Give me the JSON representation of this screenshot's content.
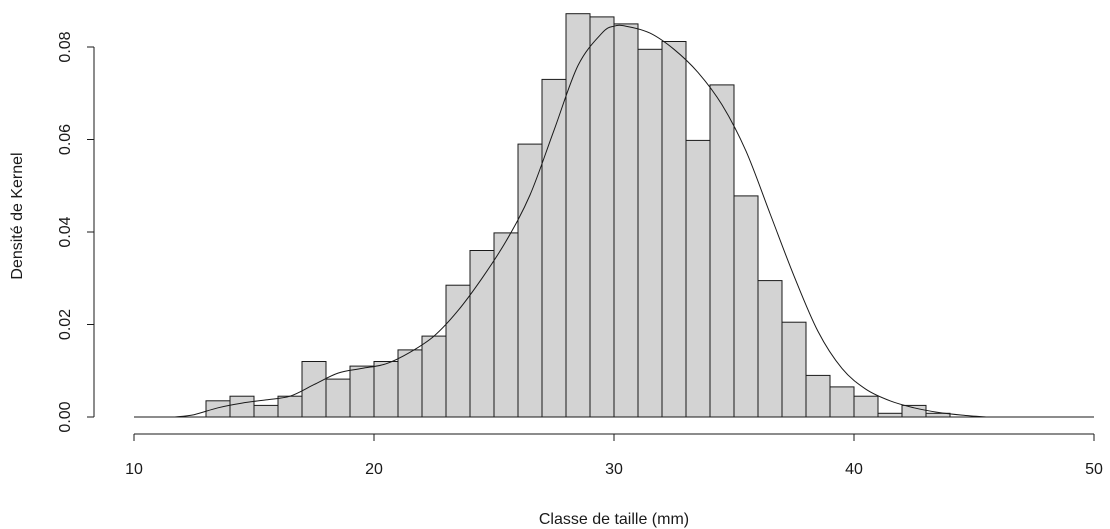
{
  "chart_data": {
    "type": "bar",
    "title": "",
    "xlabel": "Classe de taille (mm)",
    "ylabel": "Densité de Kernel",
    "xlim": [
      10,
      50
    ],
    "ylim": [
      0,
      0.085
    ],
    "x_ticks": [
      10,
      20,
      30,
      40,
      50
    ],
    "y_ticks": [
      0.0,
      0.02,
      0.04,
      0.06,
      0.08
    ],
    "y_tick_labels": [
      "0.00",
      "0.02",
      "0.04",
      "0.06",
      "0.08"
    ],
    "bar_color": "#d3d3d3",
    "outline_color": "#1a1a1a",
    "grid": false,
    "histogram": {
      "bin_width": 1,
      "bin_starts": [
        13,
        14,
        15,
        16,
        17,
        18,
        19,
        20,
        21,
        22,
        23,
        24,
        25,
        26,
        27,
        28,
        29,
        30,
        31,
        32,
        33,
        34,
        35,
        36,
        37,
        38,
        39,
        40,
        41,
        42,
        43
      ],
      "values": [
        0.0035,
        0.0045,
        0.0025,
        0.0045,
        0.012,
        0.0082,
        0.011,
        0.012,
        0.0145,
        0.0175,
        0.0285,
        0.036,
        0.0398,
        0.059,
        0.073,
        0.0872,
        0.0865,
        0.085,
        0.0795,
        0.0812,
        0.0598,
        0.0718,
        0.0478,
        0.0295,
        0.0205,
        0.009,
        0.0065,
        0.0045,
        0.0008,
        0.0025,
        0.0008
      ]
    },
    "density_curve": {
      "x": [
        11.7,
        12.5,
        13.5,
        14.5,
        15.5,
        16.5,
        17.5,
        18.5,
        19.5,
        20.5,
        21.5,
        22.5,
        23.5,
        24.5,
        25.5,
        26.5,
        27.5,
        28.5,
        29.5,
        30.0,
        30.5,
        31.5,
        32.5,
        33.5,
        34.5,
        35.5,
        36.5,
        37.5,
        38.5,
        39.5,
        40.5,
        41.5,
        42.5,
        43.5,
        44.5,
        45.5
      ],
      "y": [
        0.0,
        0.0005,
        0.002,
        0.003,
        0.0037,
        0.0045,
        0.007,
        0.0095,
        0.0105,
        0.0115,
        0.014,
        0.0175,
        0.023,
        0.03,
        0.038,
        0.048,
        0.062,
        0.076,
        0.083,
        0.0845,
        0.0845,
        0.083,
        0.0795,
        0.0745,
        0.0675,
        0.0575,
        0.044,
        0.0305,
        0.0185,
        0.0105,
        0.006,
        0.0035,
        0.002,
        0.001,
        0.0004,
        0.0
      ]
    }
  }
}
